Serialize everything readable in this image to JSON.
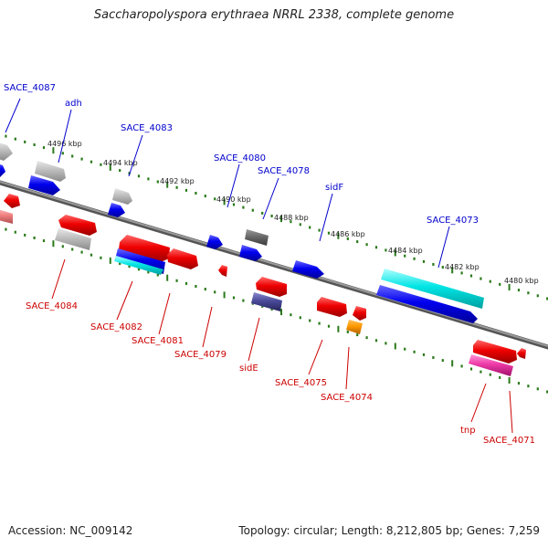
{
  "title": "Saccharopolyspora erythraea NRRL 2338, complete genome",
  "footer": {
    "accession": "Accession: NC_009142",
    "summary": "Topology: circular; Length: 8,212,805 bp; Genes: 7,259"
  },
  "colors": {
    "forward_label": "#0000cc",
    "reverse_label": "#cc0000",
    "backbone": "#808080",
    "ticks": "#2a7a1a"
  },
  "kbp_ticks": [
    "4496 kbp",
    "4494 kbp",
    "4492 kbp",
    "4490 kbp",
    "4488 kbp",
    "4486 kbp",
    "4484 kbp",
    "4482 kbp",
    "4480 kbp"
  ],
  "forward_labels": [
    "SACE_4087",
    "adh",
    "SACE_4083",
    "SACE_4080",
    "SACE_4078",
    "sidF",
    "SACE_4073"
  ],
  "reverse_labels": [
    "SACE_4084",
    "SACE_4082",
    "SACE_4081",
    "SACE_4079",
    "sidE",
    "SACE_4075",
    "SACE_4074",
    "tnp",
    "SACE_4071"
  ]
}
